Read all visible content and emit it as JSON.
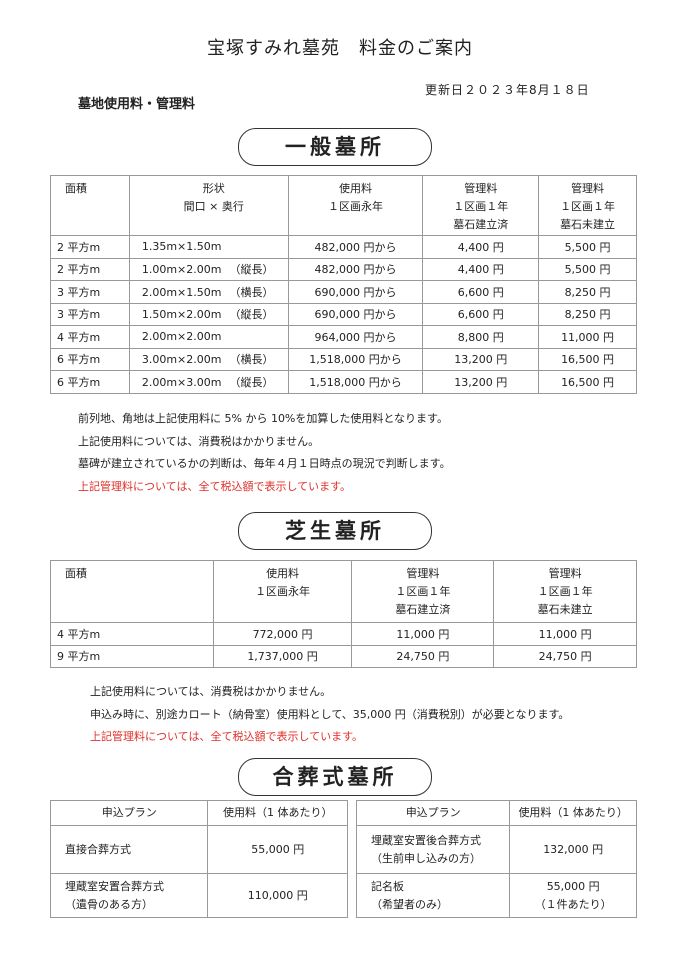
{
  "title": "宝塚すみれ墓苑　料金のご案内",
  "subtitle": "墓地使用料・管理料",
  "updated": "更新日２０２３年8月１８日",
  "general": {
    "heading": "一般墓所",
    "headers": [
      "面積",
      "形状\n間口 × 奥行",
      "使用料\n１区画永年",
      "管理料\n１区画１年\n墓石建立済",
      "管理料\n１区画１年\n墓石未建立"
    ],
    "rows": [
      [
        "2 平方m",
        "1.35m×1.50m",
        "",
        "482,000 円から",
        "4,400 円",
        "5,500 円"
      ],
      [
        "2 平方m",
        "1.00m×2.00m",
        "（縦長）",
        "482,000 円から",
        "4,400 円",
        "5,500 円"
      ],
      [
        "3 平方m",
        "2.00m×1.50m",
        "（横長）",
        "690,000 円から",
        "6,600 円",
        "8,250 円"
      ],
      [
        "3 平方m",
        "1.50m×2.00m",
        "（縦長）",
        "690,000 円から",
        "6,600 円",
        "8,250 円"
      ],
      [
        "4 平方m",
        "2.00m×2.00m",
        "",
        "964,000 円から",
        "8,800 円",
        "11,000 円"
      ],
      [
        "6 平方m",
        "3.00m×2.00m",
        "（横長）",
        "1,518,000 円から",
        "13,200 円",
        "16,500 円"
      ],
      [
        "6 平方m",
        "2.00m×3.00m",
        "（縦長）",
        "1,518,000 円から",
        "13,200 円",
        "16,500 円"
      ]
    ],
    "notes": [
      "前列地、角地は上記使用料に 5% から 10%を加算した使用料となります。",
      "上記使用料については、消費税はかかりません。",
      "墓碑が建立されているかの判断は、毎年４月１日時点の現況で判断します。"
    ],
    "red_note": "上記管理料については、全て税込額で表示しています。"
  },
  "lawn": {
    "heading": "芝生墓所",
    "headers": [
      "面積",
      "使用料\n１区画永年",
      "管理料\n１区画１年\n墓石建立済",
      "管理料\n１区画１年\n墓石未建立"
    ],
    "rows": [
      [
        "4 平方m",
        "772,000 円",
        "11,000 円",
        "11,000 円"
      ],
      [
        "9 平方m",
        "1,737,000 円",
        "24,750 円",
        "24,750 円"
      ]
    ],
    "notes": [
      "上記使用料については、消費税はかかりません。",
      "申込み時に、別途カロート（納骨室）使用料として、35,000 円（消費税別）が必要となります。"
    ],
    "red_note": "上記管理料については、全て税込額で表示しています。"
  },
  "joint": {
    "heading": "合葬式墓所",
    "left": {
      "headers": [
        "申込プラン",
        "使用料（1 体あたり）"
      ],
      "rows": [
        [
          "直接合葬方式",
          "55,000 円"
        ],
        [
          "埋蔵室安置合葬方式\n（遺骨のある方）",
          "110,000 円"
        ]
      ]
    },
    "right": {
      "headers": [
        "申込プラン",
        "使用料（1 体あたり）"
      ],
      "rows": [
        [
          "埋蔵室安置後合葬方式\n（生前申し込みの方）",
          "132,000 円"
        ],
        [
          "記名板\n（希望者のみ）",
          "55,000 円\n（１件あたり）"
        ]
      ]
    }
  }
}
